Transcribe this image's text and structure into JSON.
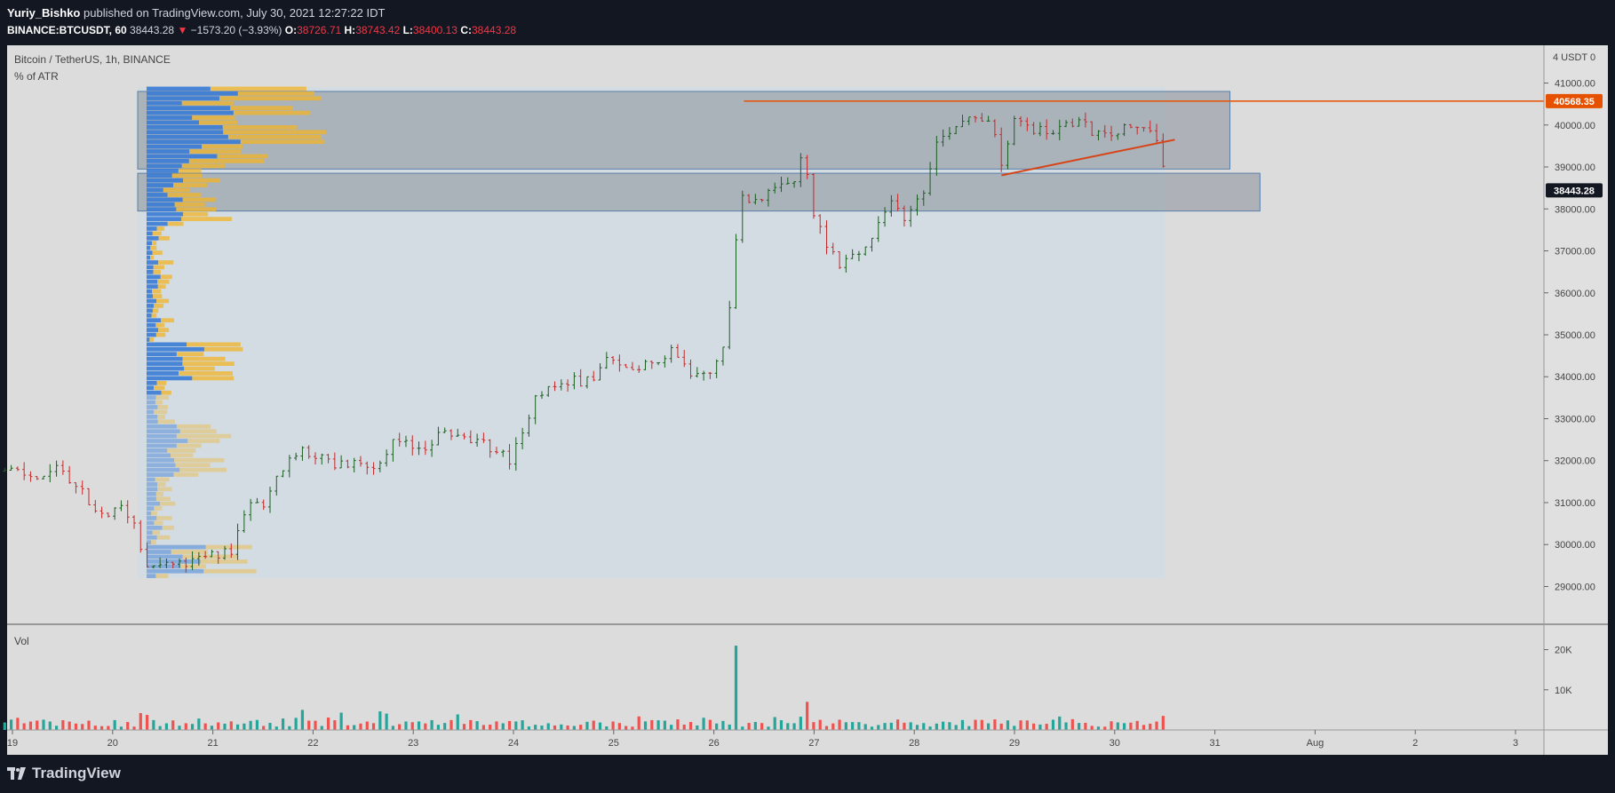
{
  "header": {
    "author": "Yuriy_Bishko",
    "published_text": "published on TradingView.com, July 30, 2021 12:27:22 IDT",
    "symbol": "BINANCE:BTCUSDT, 60",
    "last": "38443.28",
    "change": "−1573.20 (−3.93%)",
    "o_label": "O:",
    "o": "38726.71",
    "h_label": "H:",
    "h": "38743.42",
    "l_label": "L:",
    "l": "38400.13",
    "c_label": "C:",
    "c": "38443.28"
  },
  "footer": {
    "brand": "TradingView"
  },
  "colors": {
    "up": "#26a69a",
    "down": "#ef5350",
    "candle_up": "#1b5e20",
    "candle_down": "#c62828",
    "accent_orange": "#e65100",
    "vp_blue": "#2962ff",
    "vp_yellow": "#f0b429",
    "chart_bg": "#dcdcdc"
  },
  "chart_data": {
    "type": "candlestick",
    "title": "Bitcoin / TetherUS, 1h, BINANCE",
    "indicator_label": "% of ATR",
    "currency_label": "4 USDT 0",
    "volume_label": "Vol",
    "y_ticks": [
      "41000.00",
      "40000.00",
      "39000.00",
      "38000.00",
      "37000.00",
      "36000.00",
      "35000.00",
      "34000.00",
      "33000.00",
      "32000.00",
      "31000.00",
      "30000.00",
      "29000.00"
    ],
    "ylim": [
      28100,
      41900
    ],
    "vol_ticks": [
      "20K",
      "10K"
    ],
    "x_ticks": [
      "19",
      "20",
      "21",
      "22",
      "23",
      "24",
      "25",
      "26",
      "27",
      "28",
      "29",
      "30",
      "31",
      "Aug",
      "2",
      "3"
    ],
    "price_labels": [
      {
        "value": 40568.35,
        "text": "40568.35",
        "style": "orange"
      },
      {
        "value": 38443.28,
        "text": "38443.28",
        "style": "dark"
      }
    ],
    "resistance_line": {
      "start_day": 26.3,
      "end_day": 30.5,
      "value": 40568.35
    },
    "trendline": {
      "points": [
        [
          28.87,
          38800
        ],
        [
          30.6,
          39650
        ]
      ]
    },
    "zones": [
      {
        "start_day": 20.25,
        "end_day": 31.15,
        "top": 40800,
        "bottom": 38950
      },
      {
        "start_day": 20.25,
        "end_day": 31.45,
        "top": 38850,
        "bottom": 37950
      }
    ],
    "volume_profile_range": {
      "start_day": 20.25,
      "end_day": 30.5,
      "top": 40900,
      "bottom": 29200
    },
    "series_waypoints": [
      [
        18.6,
        31700
      ],
      [
        19.0,
        31750
      ],
      [
        19.2,
        31600
      ],
      [
        19.5,
        31800
      ],
      [
        19.7,
        31200
      ],
      [
        19.8,
        30700
      ],
      [
        20.0,
        30750
      ],
      [
        20.1,
        30900
      ],
      [
        20.25,
        30400
      ],
      [
        20.3,
        29600
      ],
      [
        20.7,
        29500
      ],
      [
        21.0,
        29750
      ],
      [
        21.2,
        29800
      ],
      [
        21.3,
        30800
      ],
      [
        21.5,
        31000
      ],
      [
        21.7,
        31800
      ],
      [
        21.9,
        32300
      ],
      [
        22.2,
        31900
      ],
      [
        22.6,
        31900
      ],
      [
        22.8,
        32400
      ],
      [
        23.1,
        32300
      ],
      [
        23.3,
        32700
      ],
      [
        23.5,
        32500
      ],
      [
        23.8,
        32300
      ],
      [
        23.95,
        32000
      ],
      [
        24.1,
        32600
      ],
      [
        24.2,
        33600
      ],
      [
        24.6,
        33900
      ],
      [
        24.8,
        33900
      ],
      [
        24.9,
        34400
      ],
      [
        25.1,
        34200
      ],
      [
        25.3,
        34300
      ],
      [
        25.6,
        34600
      ],
      [
        25.8,
        34000
      ],
      [
        26.0,
        34200
      ],
      [
        26.1,
        34700
      ],
      [
        26.15,
        35500
      ],
      [
        26.2,
        36800
      ],
      [
        26.25,
        38200
      ],
      [
        26.5,
        38300
      ],
      [
        26.8,
        38600
      ],
      [
        26.9,
        39500
      ],
      [
        26.97,
        38000
      ],
      [
        27.1,
        37300
      ],
      [
        27.25,
        36700
      ],
      [
        27.5,
        37000
      ],
      [
        27.7,
        37800
      ],
      [
        27.8,
        38300
      ],
      [
        27.9,
        37800
      ],
      [
        28.1,
        38500
      ],
      [
        28.2,
        39500
      ],
      [
        28.4,
        40000
      ],
      [
        28.6,
        40300
      ],
      [
        28.8,
        39900
      ],
      [
        28.87,
        38900
      ],
      [
        29.0,
        40100
      ],
      [
        29.3,
        39800
      ],
      [
        29.6,
        40100
      ],
      [
        29.9,
        39700
      ],
      [
        30.1,
        39900
      ],
      [
        30.3,
        39900
      ],
      [
        30.45,
        39700
      ],
      [
        30.5,
        38550
      ]
    ],
    "volume_spikes": [
      {
        "day": 26.2,
        "value": 21000
      },
      {
        "day": 26.95,
        "value": 7000
      },
      {
        "day": 21.9,
        "value": 5000
      },
      {
        "day": 20.25,
        "value": 4200
      },
      {
        "day": 30.5,
        "value": 3500
      }
    ],
    "volume_ylim": [
      0,
      23000
    ]
  }
}
